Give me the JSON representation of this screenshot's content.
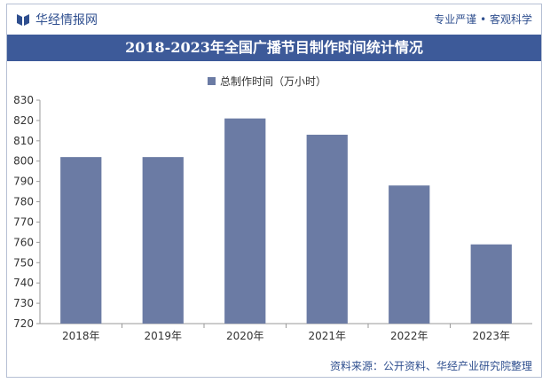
{
  "header": {
    "logo_text": "华经情报网",
    "slogan": "专业严谨 • 客观科学",
    "title": "2018-2023年全国广播节目制作时间统计情况"
  },
  "footer": {
    "source": "资料来源：公开资料、华经产业研究院整理"
  },
  "colors": {
    "bar": "#6b7ba4",
    "title_bg": "#3d5a99",
    "brand": "#2f4f8f"
  },
  "chart_data": {
    "type": "bar",
    "title": "2018-2023年全国广播节目制作时间统计情况",
    "categories": [
      "2018年",
      "2019年",
      "2020年",
      "2021年",
      "2022年",
      "2023年"
    ],
    "series": [
      {
        "name": "总制作时间（万小时）",
        "values": [
          802,
          802,
          821,
          813,
          788,
          759
        ]
      }
    ],
    "ylim": [
      720,
      830
    ],
    "yticks": [
      720,
      730,
      740,
      750,
      760,
      770,
      780,
      790,
      800,
      810,
      820,
      830
    ],
    "legend_position": "top",
    "grid": false
  }
}
